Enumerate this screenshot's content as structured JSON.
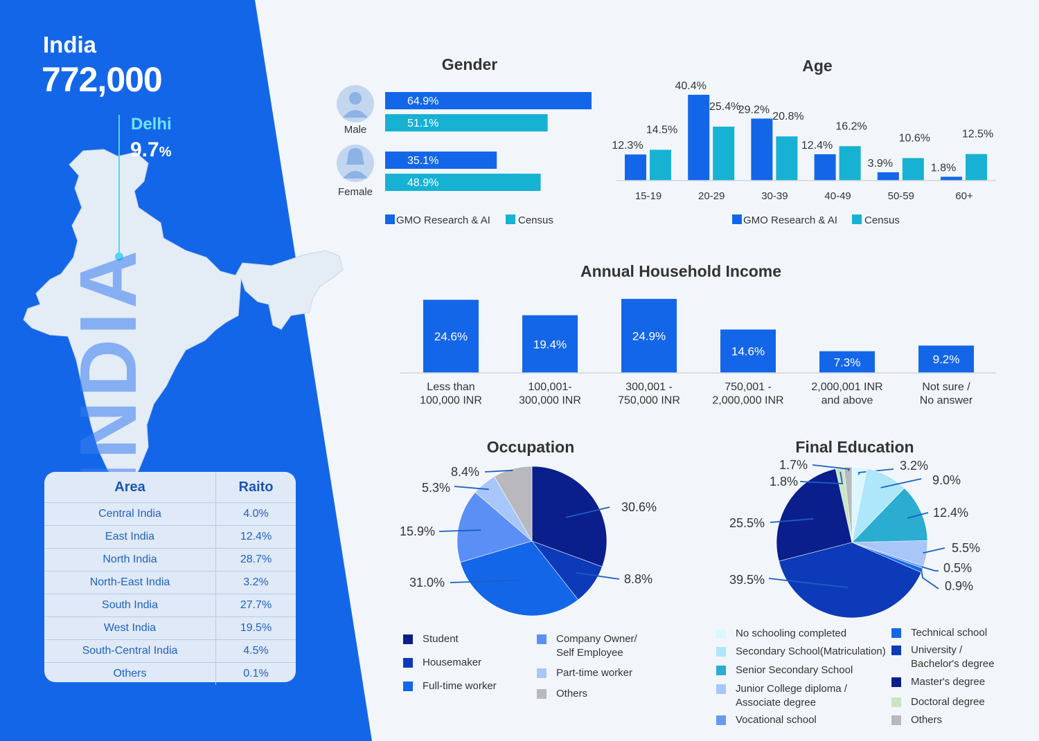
{
  "header": {
    "country": "India",
    "total": "772,000",
    "watermark": "INDIA",
    "city_label": "Delhi",
    "city_value": "9.7",
    "city_unit": "%"
  },
  "area_table": {
    "col_area": "Area",
    "col_ratio": "Raito",
    "rows": [
      {
        "area": "Central India",
        "ratio": "4.0%"
      },
      {
        "area": "East India",
        "ratio": "12.4%"
      },
      {
        "area": "North India",
        "ratio": "28.7%"
      },
      {
        "area": "North-East India",
        "ratio": "3.2%"
      },
      {
        "area": "South India",
        "ratio": "27.7%"
      },
      {
        "area": "West India",
        "ratio": "19.5%"
      },
      {
        "area": "South-Central India",
        "ratio": "4.5%"
      },
      {
        "area": "Others",
        "ratio": "0.1%"
      }
    ]
  },
  "colors": {
    "primary": "#1466e8",
    "census": "#17b1d3",
    "navy": "#0a1f8c"
  },
  "chart_data": [
    {
      "id": "gender",
      "type": "bar",
      "orientation": "horizontal",
      "title": "Gender",
      "categories": [
        "Male",
        "Female"
      ],
      "series": [
        {
          "name": "GMO Research & AI",
          "values": [
            64.9,
            35.1
          ],
          "labels": [
            "64.9%",
            "35.1%"
          ]
        },
        {
          "name": "Census",
          "values": [
            51.1,
            48.9
          ],
          "labels": [
            "51.1%",
            "48.9%"
          ]
        }
      ]
    },
    {
      "id": "age",
      "type": "bar",
      "title": "Age",
      "categories": [
        "15-19",
        "20-29",
        "30-39",
        "40-49",
        "50-59",
        "60+"
      ],
      "series": [
        {
          "name": "GMO Research & AI",
          "values": [
            12.3,
            40.4,
            29.2,
            12.4,
            3.9,
            1.8
          ],
          "labels": [
            "12.3%",
            "40.4%",
            "29.2%",
            "12.4%",
            "3.9%",
            "1.8%"
          ]
        },
        {
          "name": "Census",
          "values": [
            14.5,
            25.4,
            20.8,
            16.2,
            10.6,
            12.5
          ],
          "labels": [
            "14.5%",
            "25.4%",
            "20.8%",
            "16.2%",
            "10.6%",
            "12.5%"
          ]
        }
      ]
    },
    {
      "id": "income",
      "type": "bar",
      "title": "Annual Household Income",
      "categories": [
        [
          "Less than",
          "100,000 INR"
        ],
        [
          "100,001-",
          "300,000 INR"
        ],
        [
          "300,001 -",
          "750,000 INR"
        ],
        [
          "750,001 -",
          "2,000,000 INR"
        ],
        [
          "2,000,001 INR",
          "and above"
        ],
        [
          "Not sure /",
          "No answer"
        ]
      ],
      "values": [
        24.6,
        19.4,
        24.9,
        14.6,
        7.3,
        9.2
      ],
      "labels": [
        "24.6%",
        "19.4%",
        "24.9%",
        "14.6%",
        "7.3%",
        "9.2%"
      ]
    },
    {
      "id": "occupation",
      "type": "pie",
      "title": "Occupation",
      "slices": [
        {
          "name": "Student",
          "value": 30.6,
          "label": "30.6%",
          "color": "#0a1f8c"
        },
        {
          "name": "Housemaker",
          "value": 8.8,
          "label": "8.8%",
          "color": "#0d3ab8"
        },
        {
          "name": "Full-time worker",
          "value": 31.0,
          "label": "31.0%",
          "color": "#1466e8"
        },
        {
          "name": "Company Owner/ Self Employee",
          "value": 15.9,
          "label": "15.9%",
          "color": "#5b8ff5"
        },
        {
          "name": "Part-time worker",
          "value": 5.3,
          "label": "5.3%",
          "color": "#a8c6fa"
        },
        {
          "name": "Others",
          "value": 8.4,
          "label": "8.4%",
          "color": "#b9b9bd"
        }
      ]
    },
    {
      "id": "education",
      "type": "pie",
      "title": "Final Education",
      "slices": [
        {
          "name": "No schooling completed",
          "value": 3.2,
          "label": "3.2%",
          "color": "#dcf7fd"
        },
        {
          "name": "Secondary School(Matriculation)",
          "value": 9.0,
          "label": "9.0%",
          "color": "#aee6fa"
        },
        {
          "name": "Senior Secondary School",
          "value": 12.4,
          "label": "12.4%",
          "color": "#2aadd0"
        },
        {
          "name": "Junior College diploma / Associate degree",
          "value": 5.5,
          "label": "5.5%",
          "color": "#a9c6f8"
        },
        {
          "name": "Vocational school",
          "value": 0.5,
          "label": "0.5%",
          "color": "#6a98f0"
        },
        {
          "name": "Technical school",
          "value": 0.9,
          "label": "0.9%",
          "color": "#1466e8"
        },
        {
          "name": "University / Bachelor's degree",
          "value": 39.5,
          "label": "39.5%",
          "color": "#0d3ab8"
        },
        {
          "name": "Master's degree",
          "value": 25.5,
          "label": "25.5%",
          "color": "#0a1f8c"
        },
        {
          "name": "Doctoral degree",
          "value": 1.8,
          "label": "1.8%",
          "color": "#c9e6c4"
        },
        {
          "name": "Others",
          "value": 1.7,
          "label": "1.7%",
          "color": "#b9b9bd"
        }
      ]
    }
  ],
  "legends": {
    "gender": [
      "GMO Research & AI",
      "Census"
    ],
    "age": [
      "GMO Research & AI",
      "Census"
    ],
    "occupation": [
      {
        "label": [
          "Student"
        ],
        "color": "#0a1f8c"
      },
      {
        "label": [
          "Housemaker"
        ],
        "color": "#0d3ab8"
      },
      {
        "label": [
          "Full-time worker"
        ],
        "color": "#1466e8"
      },
      {
        "label": [
          "Company Owner/",
          "Self Employee"
        ],
        "color": "#5b8ff5"
      },
      {
        "label": [
          "Part-time worker"
        ],
        "color": "#a8c6fa"
      },
      {
        "label": [
          "Others"
        ],
        "color": "#b9b9bd"
      }
    ],
    "education": [
      {
        "label": [
          "No schooling completed"
        ],
        "color": "#dcf7fd"
      },
      {
        "label": [
          "Secondary School(Matriculation)"
        ],
        "color": "#aee6fa"
      },
      {
        "label": [
          "Senior Secondary School"
        ],
        "color": "#2aadd0"
      },
      {
        "label": [
          "Junior College diploma /",
          "Associate degree"
        ],
        "color": "#a9c6f8"
      },
      {
        "label": [
          "Vocational school"
        ],
        "color": "#6a98f0"
      },
      {
        "label": [
          "Technical school"
        ],
        "color": "#1466e8"
      },
      {
        "label": [
          "University /",
          "Bachelor's degree"
        ],
        "color": "#0d3ab8"
      },
      {
        "label": [
          "Master's degree"
        ],
        "color": "#0a1f8c"
      },
      {
        "label": [
          "Doctoral degree"
        ],
        "color": "#c9e6c4"
      },
      {
        "label": [
          "Others"
        ],
        "color": "#b9b9bd"
      }
    ]
  }
}
